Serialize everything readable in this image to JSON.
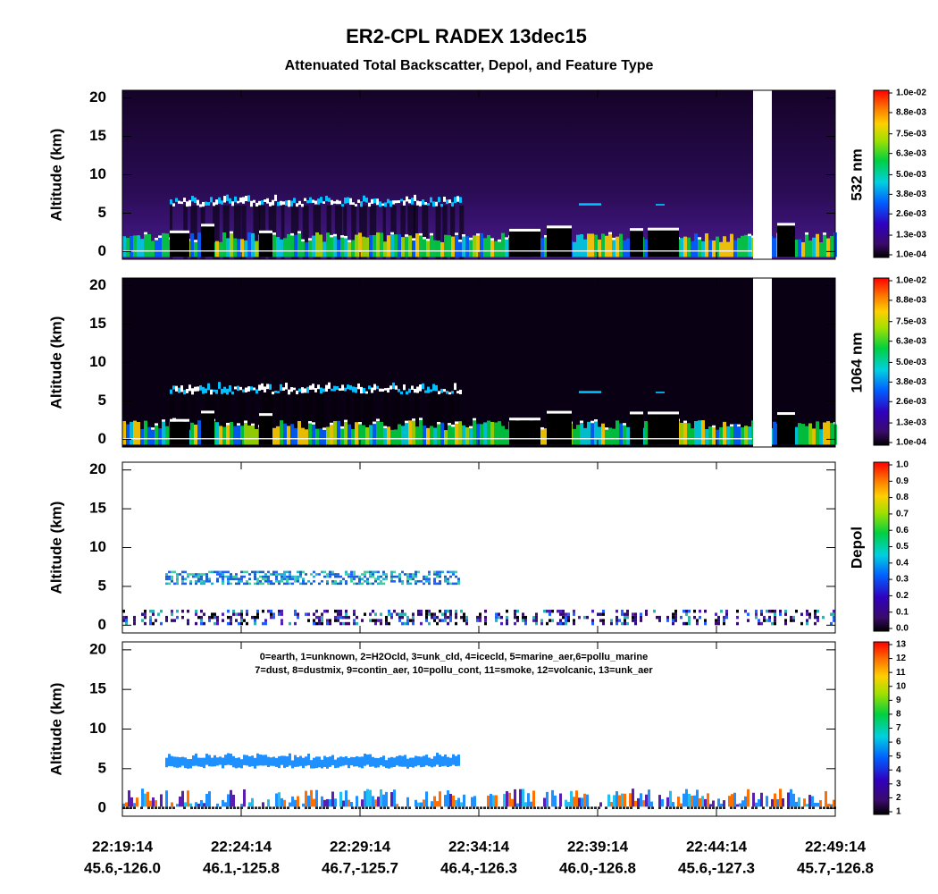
{
  "title": "ER2-CPL RADEX 13dec15",
  "subtitle": "Attenuated Total Backscatter, Depol, and Feature Type",
  "x_ticks": [
    {
      "time": "22:19:14",
      "position": "45.6,-126.0"
    },
    {
      "time": "22:24:14",
      "position": "46.1,-125.8"
    },
    {
      "time": "22:29:14",
      "position": "46.7,-125.7"
    },
    {
      "time": "22:34:14",
      "position": "46.4,-126.3"
    },
    {
      "time": "22:39:14",
      "position": "46.0,-126.8"
    },
    {
      "time": "22:44:14",
      "position": "45.6,-127.3"
    },
    {
      "time": "22:49:14",
      "position": "45.7,-126.8"
    }
  ],
  "panels": [
    {
      "kind": "backscatter532",
      "y_label": "Altitude (km)",
      "ylim": [
        -1,
        21
      ],
      "yticks": [
        0,
        5,
        10,
        15,
        20
      ],
      "colorbar": {
        "label": "532 nm",
        "clim": [
          0.0001,
          0.01
        ],
        "ticks": [
          {
            "value": 0.0001,
            "label": "1.0e-04"
          },
          {
            "value": 0.0013,
            "label": "1.3e-03"
          },
          {
            "value": 0.0026,
            "label": "2.6e-03"
          },
          {
            "value": 0.0038,
            "label": "3.8e-03"
          },
          {
            "value": 0.005,
            "label": "5.0e-03"
          },
          {
            "value": 0.0063,
            "label": "6.3e-03"
          },
          {
            "value": 0.0075,
            "label": "7.5e-03"
          },
          {
            "value": 0.0088,
            "label": "8.8e-03"
          },
          {
            "value": 0.01,
            "label": "1.0e-02"
          }
        ]
      }
    },
    {
      "kind": "backscatter1064",
      "y_label": "Altitude (km)",
      "ylim": [
        -1,
        21
      ],
      "yticks": [
        0,
        5,
        10,
        15,
        20
      ],
      "colorbar": {
        "label": "1064 nm",
        "clim": [
          0.0001,
          0.01
        ],
        "ticks": [
          {
            "value": 0.0001,
            "label": "1.0e-04"
          },
          {
            "value": 0.0013,
            "label": "1.3e-03"
          },
          {
            "value": 0.0026,
            "label": "2.6e-03"
          },
          {
            "value": 0.0038,
            "label": "3.8e-03"
          },
          {
            "value": 0.005,
            "label": "5.0e-03"
          },
          {
            "value": 0.0063,
            "label": "6.3e-03"
          },
          {
            "value": 0.0075,
            "label": "7.5e-03"
          },
          {
            "value": 0.0088,
            "label": "8.8e-03"
          },
          {
            "value": 0.01,
            "label": "1.0e-02"
          }
        ]
      }
    },
    {
      "kind": "depol",
      "y_label": "Altitude (km)",
      "ylim": [
        -1,
        21
      ],
      "yticks": [
        0,
        5,
        10,
        15,
        20
      ],
      "colorbar": {
        "label": "Depol",
        "clim": [
          0,
          1
        ],
        "ticks": [
          {
            "value": 0,
            "label": "0.0"
          },
          0.1,
          0.2,
          0.3,
          0.4,
          0.5,
          0.6,
          0.7,
          0.8,
          0.9,
          {
            "value": 1,
            "label": "1.0"
          }
        ]
      }
    },
    {
      "kind": "feature",
      "y_label": "Altitude (km)",
      "ylim": [
        -1,
        21
      ],
      "yticks": [
        0,
        5,
        10,
        15,
        20
      ],
      "legend": [
        "0=earth, 1=unknown, 2=H2Ocld, 3=unk_cld, 4=icecld, 5=marine_aer,6=pollu_marine",
        "7=dust, 8=dustmix, 9=contin_aer, 10=pollu_cont, 11=smoke, 12=volcanic, 13=unk_aer"
      ],
      "colorbar": {
        "clim": [
          1,
          13
        ],
        "ticks": [
          1,
          2,
          3,
          4,
          5,
          6,
          7,
          8,
          9,
          10,
          11,
          12,
          13
        ]
      }
    }
  ]
}
